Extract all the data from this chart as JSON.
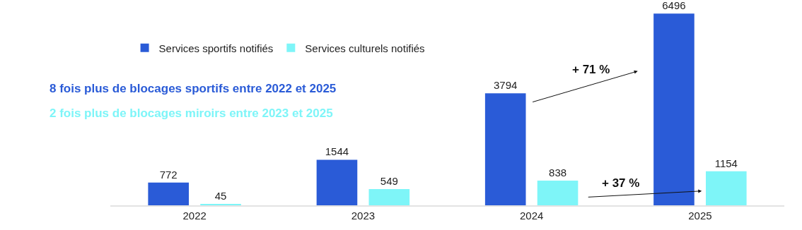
{
  "chart_data": {
    "type": "bar",
    "categories": [
      "2022",
      "2023",
      "2024",
      "2025"
    ],
    "series": [
      {
        "name": "Services sportifs notifiés",
        "color": "#2a5bd7",
        "values": [
          772,
          1544,
          3794,
          6496
        ]
      },
      {
        "name": "Services culturels notifiés",
        "color": "#7ef5f8",
        "values": [
          45,
          549,
          838,
          1154
        ]
      }
    ],
    "data_labels": true,
    "legend": "top",
    "grid": false,
    "tick_labels": "x",
    "annotations": [
      "8 fois plus de blocages sportifs entre 2022 et 2025",
      "2 fois plus de blocages miroirs entre 2023 et 2025",
      "+ 71 %",
      "+ 37 %"
    ]
  }
}
